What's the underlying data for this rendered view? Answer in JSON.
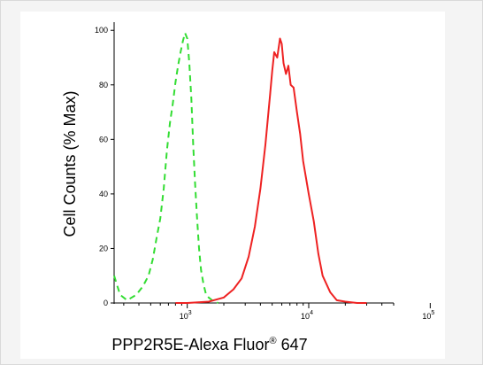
{
  "chart_data": {
    "type": "line",
    "title": "",
    "xlabel": "PPP2R5E-Alexa Fluor",
    "xlabel_sup": "®",
    "xlabel_tail": " 647",
    "ylabel": "Cell Counts (% Max)",
    "x_scale": "log",
    "xlim": [
      250,
      50000
    ],
    "ylim": [
      0,
      103
    ],
    "y_ticks": [
      "0",
      "20",
      "40",
      "60",
      "80",
      "100"
    ],
    "x_ticks": [
      {
        "value": 1000,
        "base": "10",
        "exp": "3"
      },
      {
        "value": 10000,
        "base": "10",
        "exp": "4"
      },
      {
        "value": 100000,
        "base": "10",
        "exp": "5"
      }
    ],
    "grid": false,
    "legend": "none",
    "series": [
      {
        "color": "#33dd33",
        "style": "dashed",
        "x": [
          250,
          280,
          320,
          380,
          430,
          480,
          520,
          560,
          600,
          640,
          680,
          720,
          760,
          800,
          840,
          880,
          920,
          960,
          1000,
          1040,
          1080,
          1120,
          1160,
          1200,
          1250,
          1300,
          1360,
          1430,
          1500,
          1600,
          1700,
          1800
        ],
        "y": [
          10,
          3,
          1,
          3,
          6,
          10,
          16,
          24,
          31,
          42,
          56,
          66,
          73,
          81,
          87,
          92,
          96,
          99,
          97,
          88,
          75,
          58,
          44,
          32,
          20,
          12,
          7,
          3,
          2,
          1,
          0.5,
          0
        ]
      },
      {
        "color": "#ee2222",
        "style": "solid",
        "x": [
          800,
          1000,
          1500,
          2000,
          2400,
          2800,
          3200,
          3600,
          4000,
          4400,
          4800,
          5000,
          5200,
          5500,
          5800,
          6000,
          6200,
          6500,
          6800,
          7100,
          7500,
          8000,
          8500,
          9000,
          10000,
          11000,
          12000,
          13000,
          15000,
          17000,
          20000,
          25000,
          30000
        ],
        "y": [
          0,
          0,
          0.5,
          2,
          5,
          9,
          17,
          28,
          42,
          58,
          76,
          85,
          92,
          90,
          97,
          95,
          88,
          84,
          87,
          80,
          79,
          70,
          62,
          52,
          40,
          30,
          18,
          10,
          4,
          1,
          0.5,
          0,
          0
        ]
      }
    ]
  }
}
